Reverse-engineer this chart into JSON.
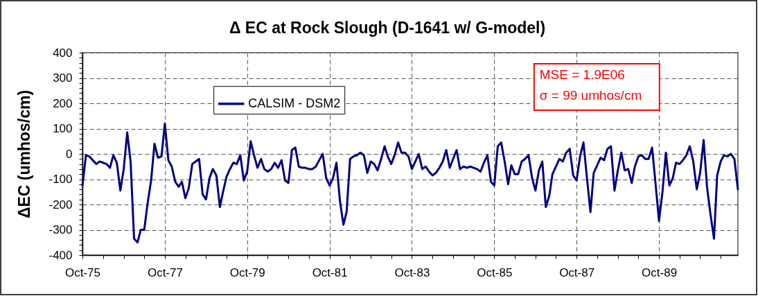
{
  "chart_data": {
    "type": "line",
    "title": "Δ EC at Rock Slough (D-1641 w/ G-model)",
    "ylabel": "ΔEC (umhos/cm)",
    "x": [
      "1975-10",
      "1975-11",
      "1975-12",
      "1976-01",
      "1976-02",
      "1976-03",
      "1976-04",
      "1976-05",
      "1976-06",
      "1976-07",
      "1976-08",
      "1976-09",
      "1976-10",
      "1976-11",
      "1976-12",
      "1977-01",
      "1977-02",
      "1977-03",
      "1977-04",
      "1977-05",
      "1977-06",
      "1977-07",
      "1977-08",
      "1977-09",
      "1977-10",
      "1977-11",
      "1977-12",
      "1978-01",
      "1978-02",
      "1978-03",
      "1978-04",
      "1978-05",
      "1978-06",
      "1978-07",
      "1978-08",
      "1978-09",
      "1978-10",
      "1978-11",
      "1978-12",
      "1979-01",
      "1979-02",
      "1979-03",
      "1979-04",
      "1979-05",
      "1979-06",
      "1979-07",
      "1979-08",
      "1979-09",
      "1979-10",
      "1979-11",
      "1979-12",
      "1980-01",
      "1980-02",
      "1980-03",
      "1980-04",
      "1980-05",
      "1980-06",
      "1980-07",
      "1980-08",
      "1980-09",
      "1980-10",
      "1980-11",
      "1980-12",
      "1981-01",
      "1981-02",
      "1981-03",
      "1981-04",
      "1981-05",
      "1981-06",
      "1981-07",
      "1981-08",
      "1981-09",
      "1981-10",
      "1981-11",
      "1981-12",
      "1982-01",
      "1982-02",
      "1982-03",
      "1982-04",
      "1982-05",
      "1982-06",
      "1982-07",
      "1982-08",
      "1982-09",
      "1982-10",
      "1982-11",
      "1982-12",
      "1983-01",
      "1983-02",
      "1983-03",
      "1983-04",
      "1983-05",
      "1983-06",
      "1983-07",
      "1983-08",
      "1983-09",
      "1983-10",
      "1983-11",
      "1983-12",
      "1984-01",
      "1984-02",
      "1984-03",
      "1984-04",
      "1984-05",
      "1984-06",
      "1984-07",
      "1984-08",
      "1984-09",
      "1984-10",
      "1984-11",
      "1984-12",
      "1985-01",
      "1985-02",
      "1985-03",
      "1985-04",
      "1985-05",
      "1985-06",
      "1985-07",
      "1985-08",
      "1985-09",
      "1985-10",
      "1985-11",
      "1985-12",
      "1986-01",
      "1986-02",
      "1986-03",
      "1986-04",
      "1986-05",
      "1986-06",
      "1986-07",
      "1986-08",
      "1986-09",
      "1986-10",
      "1986-11",
      "1986-12",
      "1987-01",
      "1987-02",
      "1987-03",
      "1987-04",
      "1987-05",
      "1987-06",
      "1987-07",
      "1987-08",
      "1987-09",
      "1987-10",
      "1987-11",
      "1987-12",
      "1988-01",
      "1988-02",
      "1988-03",
      "1988-04",
      "1988-05",
      "1988-06",
      "1988-07",
      "1988-08",
      "1988-09",
      "1988-10",
      "1988-11",
      "1988-12",
      "1989-01",
      "1989-02",
      "1989-03",
      "1989-04",
      "1989-05",
      "1989-06",
      "1989-07",
      "1989-08",
      "1989-09",
      "1989-10",
      "1989-11",
      "1989-12",
      "1990-01",
      "1990-02",
      "1990-03",
      "1990-04",
      "1990-05",
      "1990-06",
      "1990-07",
      "1990-08",
      "1990-09",
      "1990-10",
      "1990-11",
      "1990-12",
      "1991-01",
      "1991-02",
      "1991-03",
      "1991-04",
      "1991-05",
      "1991-06",
      "1991-07",
      "1991-08",
      "1991-09"
    ],
    "series": [
      {
        "name": "CALSIM - DSM2",
        "color": "#000080",
        "values": [
          -125,
          -5,
          -10,
          -25,
          -40,
          -30,
          -35,
          -40,
          -55,
          -5,
          -35,
          -145,
          -60,
          85,
          -30,
          -335,
          -350,
          -300,
          -300,
          -195,
          -105,
          40,
          -15,
          -10,
          120,
          -25,
          -50,
          -110,
          -130,
          -110,
          -175,
          -135,
          -40,
          -30,
          -20,
          -160,
          -180,
          -95,
          -60,
          -85,
          -210,
          -150,
          -90,
          -60,
          -35,
          -40,
          -5,
          -105,
          -70,
          50,
          -5,
          -55,
          -20,
          -60,
          -70,
          -60,
          -35,
          -55,
          -25,
          -105,
          -115,
          15,
          25,
          -50,
          -55,
          -55,
          -60,
          -60,
          -50,
          -25,
          0,
          -95,
          -125,
          -95,
          -35,
          -185,
          -280,
          -230,
          -20,
          -10,
          -5,
          5,
          -5,
          -75,
          -30,
          -40,
          -65,
          -20,
          30,
          -10,
          -40,
          -5,
          45,
          5,
          5,
          -10,
          -60,
          -30,
          0,
          -60,
          -50,
          -70,
          -85,
          -75,
          -55,
          -30,
          15,
          -55,
          -20,
          15,
          -60,
          -50,
          -55,
          -50,
          -55,
          -60,
          -70,
          -35,
          -5,
          -110,
          -125,
          30,
          45,
          -30,
          -120,
          -45,
          -80,
          -80,
          -30,
          -20,
          -5,
          -95,
          -145,
          -65,
          -30,
          -210,
          -165,
          -80,
          -50,
          -20,
          -30,
          5,
          20,
          -85,
          -105,
          -10,
          45,
          -95,
          -230,
          -75,
          -45,
          -15,
          -25,
          20,
          30,
          -145,
          -65,
          5,
          -65,
          -60,
          -115,
          -50,
          -10,
          -5,
          -20,
          -20,
          25,
          -120,
          -265,
          -150,
          5,
          -125,
          -95,
          -35,
          -40,
          -25,
          -5,
          30,
          -30,
          -140,
          -75,
          55,
          -130,
          -240,
          -335,
          -85,
          -30,
          -5,
          -10,
          0,
          -20,
          -140
        ]
      }
    ],
    "xlim": [
      "1975-10",
      "1991-09"
    ],
    "xticks": [
      {
        "value": "1975-10",
        "label": "Oct-75"
      },
      {
        "value": "1976-04",
        "label": null
      },
      {
        "value": "1976-10",
        "label": null
      },
      {
        "value": "1977-04",
        "label": null
      },
      {
        "value": "1977-10",
        "label": "Oct-77"
      },
      {
        "value": "1978-04",
        "label": null
      },
      {
        "value": "1978-10",
        "label": null
      },
      {
        "value": "1979-04",
        "label": null
      },
      {
        "value": "1979-10",
        "label": "Oct-79"
      },
      {
        "value": "1980-04",
        "label": null
      },
      {
        "value": "1980-10",
        "label": null
      },
      {
        "value": "1981-04",
        "label": null
      },
      {
        "value": "1981-10",
        "label": "Oct-81"
      },
      {
        "value": "1982-04",
        "label": null
      },
      {
        "value": "1982-10",
        "label": null
      },
      {
        "value": "1983-04",
        "label": null
      },
      {
        "value": "1983-10",
        "label": "Oct-83"
      },
      {
        "value": "1984-04",
        "label": null
      },
      {
        "value": "1984-10",
        "label": null
      },
      {
        "value": "1985-04",
        "label": null
      },
      {
        "value": "1985-10",
        "label": "Oct-85"
      },
      {
        "value": "1986-04",
        "label": null
      },
      {
        "value": "1986-10",
        "label": null
      },
      {
        "value": "1987-04",
        "label": null
      },
      {
        "value": "1987-10",
        "label": "Oct-87"
      },
      {
        "value": "1988-04",
        "label": null
      },
      {
        "value": "1988-10",
        "label": null
      },
      {
        "value": "1989-04",
        "label": null
      },
      {
        "value": "1989-10",
        "label": "Oct-89"
      },
      {
        "value": "1990-04",
        "label": null
      },
      {
        "value": "1990-10",
        "label": null
      },
      {
        "value": "1991-04",
        "label": null
      }
    ],
    "ylim": [
      -400,
      400
    ],
    "yticks": [
      -400,
      {
        "value": -380,
        "label": null
      },
      {
        "value": -360,
        "label": null
      },
      {
        "value": -340,
        "label": null
      },
      {
        "value": -320,
        "label": null
      },
      -300,
      {
        "value": -280,
        "label": null
      },
      {
        "value": -260,
        "label": null
      },
      {
        "value": -240,
        "label": null
      },
      {
        "value": -220,
        "label": null
      },
      -200,
      {
        "value": -180,
        "label": null
      },
      {
        "value": -160,
        "label": null
      },
      {
        "value": -140,
        "label": null
      },
      {
        "value": -120,
        "label": null
      },
      -100,
      {
        "value": -80,
        "label": null
      },
      {
        "value": -60,
        "label": null
      },
      {
        "value": -40,
        "label": null
      },
      {
        "value": -20,
        "label": null
      },
      0,
      {
        "value": 20,
        "label": null
      },
      {
        "value": 40,
        "label": null
      },
      {
        "value": 60,
        "label": null
      },
      {
        "value": 80,
        "label": null
      },
      100,
      {
        "value": 120,
        "label": null
      },
      {
        "value": 140,
        "label": null
      },
      {
        "value": 160,
        "label": null
      },
      {
        "value": 180,
        "label": null
      },
      200,
      {
        "value": 220,
        "label": null
      },
      {
        "value": 240,
        "label": null
      },
      {
        "value": 260,
        "label": null
      },
      {
        "value": 280,
        "label": null
      },
      300,
      {
        "value": 320,
        "label": null
      },
      {
        "value": 340,
        "label": null
      },
      {
        "value": 360,
        "label": null
      },
      {
        "value": 380,
        "label": null
      },
      400
    ],
    "grid": true,
    "legend": "top left",
    "line_style": "solid",
    "annotations": [
      "MSE = 1.9E06",
      "σ = 99 umhos/cm"
    ]
  }
}
